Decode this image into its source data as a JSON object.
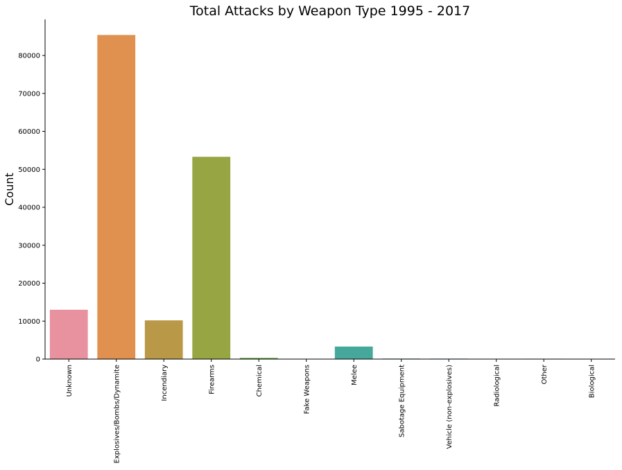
{
  "chart_data": {
    "type": "bar",
    "title": "Total Attacks by Weapon Type 1995 - 2017",
    "xlabel": "",
    "ylabel": "Count",
    "ylim": [
      0,
      89500
    ],
    "yticks": [
      0,
      10000,
      20000,
      30000,
      40000,
      50000,
      60000,
      70000,
      80000
    ],
    "ytick_labels": [
      "0",
      "10000",
      "20000",
      "30000",
      "40000",
      "50000",
      "60000",
      "70000",
      "80000"
    ],
    "grid": false,
    "legend": "none",
    "categories": [
      "Unknown",
      "Explosives/Bombs/Dynamite",
      "Incendiary",
      "Firearms",
      "Chemical",
      "Fake Weapons",
      "Melee",
      "Sabotage Equipment",
      "Vehicle (non-explosives)",
      "Radiological",
      "Other",
      "Biological"
    ],
    "values": [
      13000,
      85400,
      10200,
      53300,
      320,
      30,
      3300,
      130,
      120,
      10,
      100,
      30
    ],
    "colors": [
      "#e8919f",
      "#e0914f",
      "#b99847",
      "#97a543",
      "#5eae49",
      "#4aac82",
      "#46a89b",
      "#47a6ae",
      "#4aa3c0",
      "#8d9ad8",
      "#c987d2",
      "#e28fbd"
    ]
  }
}
